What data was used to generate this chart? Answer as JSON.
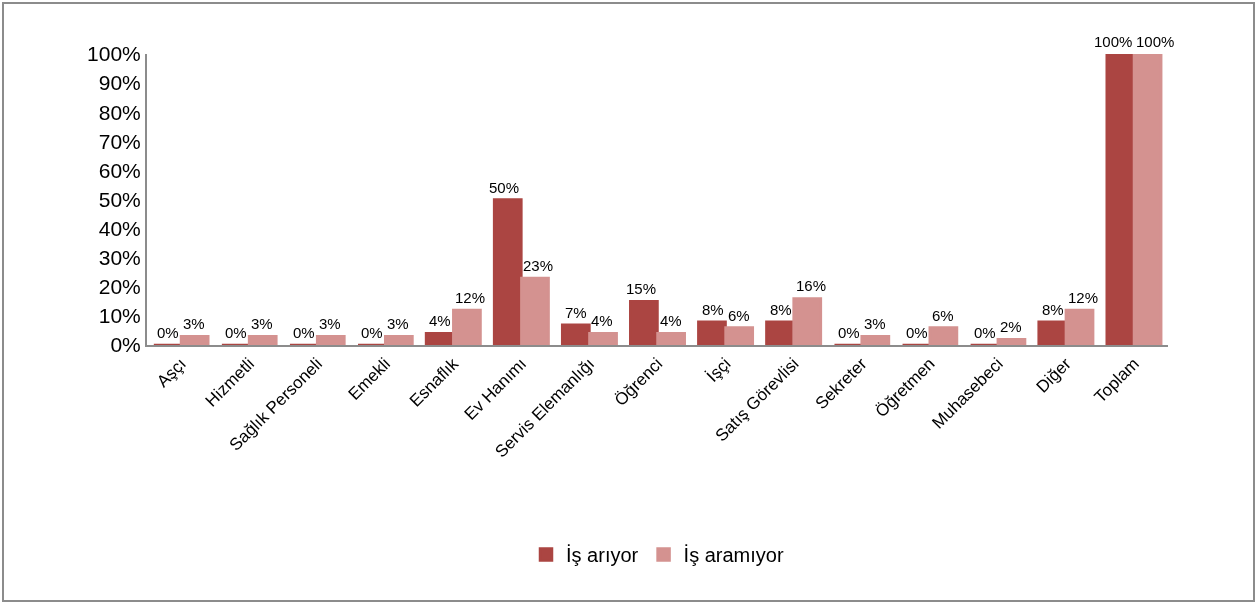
{
  "chart_data": {
    "type": "bar",
    "categories": [
      "Aşçı",
      "Hizmetli",
      "Sağlık Personeli",
      "Emekli",
      "Esnaflık",
      "Ev Hanımı",
      "Servis Elemanlığı",
      "Öğrenci",
      "İşçi",
      "Satış Görevlisi",
      "Sekreter",
      "Öğretmen",
      "Muhasebeci",
      "Diğer",
      "Toplam"
    ],
    "series": [
      {
        "name": "İş arıyor",
        "color": "#ab4542",
        "values": [
          0,
          0,
          0,
          0,
          4,
          50,
          7,
          15,
          8,
          8,
          0,
          0,
          0,
          8,
          100
        ],
        "value_labels": [
          "0%",
          "0%",
          "0%",
          "0%",
          "4%",
          "50%",
          "7%",
          "15%",
          "8%",
          "8%",
          "0%",
          "0%",
          "0%",
          "8%",
          "100%"
        ]
      },
      {
        "name": "İş aramıyor",
        "color": "#d49290",
        "values": [
          3,
          3,
          3,
          3,
          12,
          23,
          4,
          4,
          6,
          16,
          3,
          6,
          2,
          12,
          100
        ],
        "value_labels": [
          "3%",
          "3%",
          "3%",
          "3%",
          "12%",
          "23%",
          "4%",
          "4%",
          "6%",
          "16%",
          "3%",
          "6%",
          "2%",
          "12%",
          "100%"
        ]
      }
    ],
    "ylim": [
      0,
      100
    ],
    "yticks": [
      {
        "value": 0,
        "label": "0%"
      },
      {
        "value": 10,
        "label": "10%"
      },
      {
        "value": 20,
        "label": "20%"
      },
      {
        "value": 30,
        "label": "30%"
      },
      {
        "value": 40,
        "label": "40%"
      },
      {
        "value": 50,
        "label": "50%"
      },
      {
        "value": 60,
        "label": "60%"
      },
      {
        "value": 70,
        "label": "70%"
      },
      {
        "value": 80,
        "label": "80%"
      },
      {
        "value": 90,
        "label": "90%"
      },
      {
        "value": 100,
        "label": "100%"
      }
    ],
    "grid": false,
    "legend": "bottom"
  }
}
